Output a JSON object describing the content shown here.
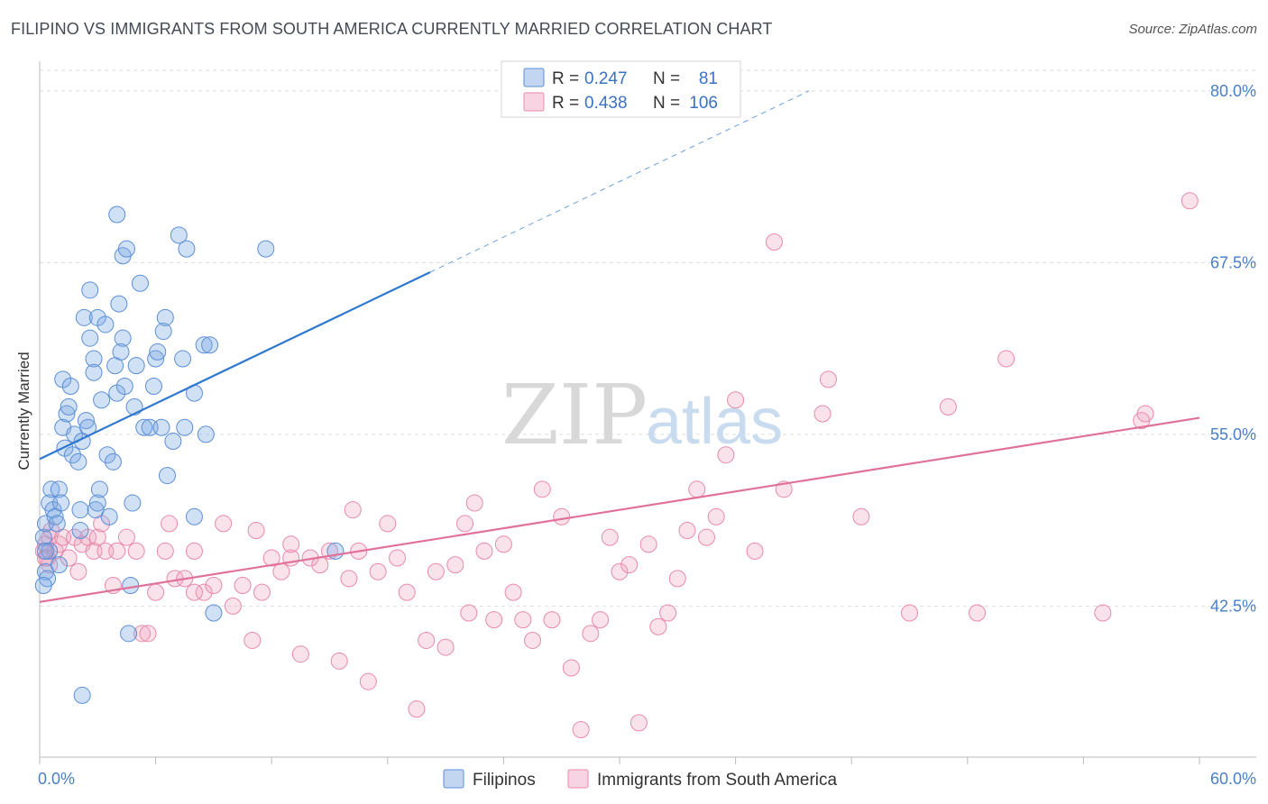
{
  "title": "FILIPINO VS IMMIGRANTS FROM SOUTH AMERICA CURRENTLY MARRIED CORRELATION CHART",
  "source": "Source: ZipAtlas.com",
  "watermark": {
    "zip": "ZIP",
    "atlas": "atlas"
  },
  "colors": {
    "blue": "#5b8fd6",
    "blue_fill": "rgba(120,165,225,0.35)",
    "blue_line": "#2f78d0",
    "pink": "#e88aa8",
    "pink_fill": "rgba(240,160,190,0.30)",
    "pink_line": "#e0719a",
    "axis_label": "#4a7fc8",
    "grid": "#dddddd"
  },
  "legend": {
    "rows": [
      {
        "r_label": "R =",
        "r_value": "0.247",
        "n_label": "N =",
        "n_value": "81"
      },
      {
        "r_label": "R =",
        "r_value": "0.438",
        "n_label": "N =",
        "n_value": "106"
      }
    ]
  },
  "bottom_legend": [
    "Filipinos",
    "Immigrants from South America"
  ],
  "chart_data": {
    "type": "scatter",
    "title": "FILIPINO VS IMMIGRANTS FROM SOUTH AMERICA CURRENTLY MARRIED CORRELATION CHART",
    "xlabel": "",
    "ylabel": "Currently Married",
    "xlim": [
      0,
      60
    ],
    "ylim": [
      31.5,
      81.5
    ],
    "x_tick_labels": [
      "0.0%",
      "60.0%"
    ],
    "y_ticks": [
      42.5,
      55.0,
      67.5,
      80.0
    ],
    "y_tick_labels": [
      "42.5%",
      "55.0%",
      "67.5%",
      "80.0%"
    ],
    "grid": true,
    "legend_position": "top-center",
    "series": [
      {
        "name": "Filipinos",
        "color": "blue",
        "trend": {
          "x": [
            0,
            20.2
          ],
          "y": [
            53.2,
            66.8
          ],
          "dashed_to": [
            39.8,
            80.0
          ]
        },
        "points": [
          [
            0.2,
            47.5
          ],
          [
            0.3,
            48.5
          ],
          [
            0.3,
            45.0
          ],
          [
            0.4,
            44.5
          ],
          [
            0.5,
            46.5
          ],
          [
            0.5,
            50.0
          ],
          [
            0.6,
            51.0
          ],
          [
            0.7,
            49.5
          ],
          [
            0.8,
            49.0
          ],
          [
            0.9,
            48.5
          ],
          [
            1.0,
            51.0
          ],
          [
            1.1,
            50.0
          ],
          [
            1.0,
            45.5
          ],
          [
            1.2,
            55.5
          ],
          [
            1.3,
            54.0
          ],
          [
            1.2,
            59.0
          ],
          [
            1.4,
            56.5
          ],
          [
            1.5,
            57.0
          ],
          [
            1.6,
            58.5
          ],
          [
            1.7,
            53.5
          ],
          [
            1.8,
            55.0
          ],
          [
            2.0,
            53.0
          ],
          [
            2.1,
            48.0
          ],
          [
            2.1,
            49.5
          ],
          [
            2.2,
            54.5
          ],
          [
            2.3,
            63.5
          ],
          [
            2.4,
            56.0
          ],
          [
            2.5,
            55.5
          ],
          [
            2.6,
            62.0
          ],
          [
            2.6,
            65.5
          ],
          [
            2.8,
            60.5
          ],
          [
            3.0,
            63.5
          ],
          [
            2.9,
            49.5
          ],
          [
            2.8,
            59.5
          ],
          [
            3.0,
            50.0
          ],
          [
            3.1,
            51.0
          ],
          [
            3.2,
            57.5
          ],
          [
            3.4,
            63.0
          ],
          [
            3.5,
            53.5
          ],
          [
            3.6,
            49.0
          ],
          [
            3.8,
            53.0
          ],
          [
            3.9,
            60.0
          ],
          [
            4.0,
            58.0
          ],
          [
            4.1,
            64.5
          ],
          [
            4.2,
            61.0
          ],
          [
            4.3,
            62.0
          ],
          [
            4.4,
            58.5
          ],
          [
            4.0,
            71.0
          ],
          [
            4.3,
            68.0
          ],
          [
            4.5,
            68.5
          ],
          [
            4.6,
            40.5
          ],
          [
            4.7,
            44.0
          ],
          [
            4.8,
            50.0
          ],
          [
            4.9,
            57.0
          ],
          [
            5.0,
            60.0
          ],
          [
            5.2,
            66.0
          ],
          [
            5.4,
            55.5
          ],
          [
            5.7,
            55.5
          ],
          [
            5.9,
            58.5
          ],
          [
            6.0,
            60.5
          ],
          [
            6.1,
            61.0
          ],
          [
            6.3,
            55.5
          ],
          [
            6.4,
            62.5
          ],
          [
            6.5,
            63.5
          ],
          [
            6.6,
            52.0
          ],
          [
            6.9,
            54.5
          ],
          [
            7.2,
            69.5
          ],
          [
            7.4,
            60.5
          ],
          [
            7.6,
            68.5
          ],
          [
            8.0,
            49.0
          ],
          [
            8.0,
            58.0
          ],
          [
            8.5,
            61.5
          ],
          [
            8.8,
            61.5
          ],
          [
            7.5,
            55.5
          ],
          [
            8.6,
            55.0
          ],
          [
            9.0,
            42.0
          ],
          [
            11.7,
            68.5
          ],
          [
            15.3,
            46.5
          ],
          [
            2.2,
            36.0
          ],
          [
            0.2,
            44.0
          ],
          [
            0.3,
            46.5
          ]
        ]
      },
      {
        "name": "Immigrants from South America",
        "color": "pink",
        "trend": {
          "x": [
            0,
            60
          ],
          "y": [
            42.8,
            56.2
          ]
        },
        "points": [
          [
            0.2,
            46.5
          ],
          [
            0.3,
            47.0
          ],
          [
            0.4,
            46.0
          ],
          [
            0.5,
            47.5
          ],
          [
            0.6,
            48.0
          ],
          [
            0.8,
            46.5
          ],
          [
            1.0,
            47.0
          ],
          [
            1.2,
            47.5
          ],
          [
            1.5,
            46.0
          ],
          [
            1.8,
            47.5
          ],
          [
            2.0,
            45.0
          ],
          [
            2.2,
            47.0
          ],
          [
            2.5,
            47.5
          ],
          [
            2.8,
            46.5
          ],
          [
            3.0,
            47.5
          ],
          [
            3.4,
            46.5
          ],
          [
            3.8,
            44.0
          ],
          [
            4.0,
            46.5
          ],
          [
            4.5,
            47.5
          ],
          [
            5.0,
            46.5
          ],
          [
            5.3,
            40.5
          ],
          [
            5.6,
            40.5
          ],
          [
            6.0,
            43.5
          ],
          [
            6.5,
            46.5
          ],
          [
            6.7,
            48.5
          ],
          [
            7.0,
            44.5
          ],
          [
            7.5,
            44.5
          ],
          [
            8.0,
            46.5
          ],
          [
            8.5,
            43.5
          ],
          [
            9.0,
            44.0
          ],
          [
            9.5,
            48.5
          ],
          [
            10.0,
            42.5
          ],
          [
            10.5,
            44.0
          ],
          [
            11.0,
            40.0
          ],
          [
            11.5,
            43.5
          ],
          [
            12.0,
            46.0
          ],
          [
            12.5,
            45.0
          ],
          [
            13.0,
            46.0
          ],
          [
            13.5,
            39.0
          ],
          [
            14.0,
            46.0
          ],
          [
            14.5,
            45.5
          ],
          [
            15.0,
            46.5
          ],
          [
            15.5,
            38.5
          ],
          [
            16.0,
            44.5
          ],
          [
            16.5,
            46.5
          ],
          [
            17.0,
            37.0
          ],
          [
            17.5,
            45.0
          ],
          [
            18.0,
            48.5
          ],
          [
            18.5,
            46.0
          ],
          [
            19.0,
            43.5
          ],
          [
            19.5,
            35.0
          ],
          [
            20.0,
            40.0
          ],
          [
            20.5,
            45.0
          ],
          [
            21.0,
            39.5
          ],
          [
            21.5,
            45.5
          ],
          [
            22.0,
            48.5
          ],
          [
            22.5,
            50.0
          ],
          [
            23.0,
            46.5
          ],
          [
            23.5,
            41.5
          ],
          [
            24.0,
            47.0
          ],
          [
            24.5,
            43.5
          ],
          [
            25.0,
            41.5
          ],
          [
            25.5,
            40.0
          ],
          [
            26.0,
            51.0
          ],
          [
            26.5,
            41.5
          ],
          [
            27.0,
            49.0
          ],
          [
            27.5,
            38.0
          ],
          [
            28.0,
            33.5
          ],
          [
            28.5,
            40.5
          ],
          [
            29.0,
            41.5
          ],
          [
            29.5,
            47.5
          ],
          [
            30.0,
            45.0
          ],
          [
            30.5,
            45.5
          ],
          [
            31.0,
            34.0
          ],
          [
            31.5,
            47.0
          ],
          [
            32.0,
            41.0
          ],
          [
            32.5,
            42.0
          ],
          [
            33.0,
            44.5
          ],
          [
            33.5,
            48.0
          ],
          [
            34.0,
            51.0
          ],
          [
            34.5,
            47.5
          ],
          [
            35.0,
            49.0
          ],
          [
            35.5,
            53.5
          ],
          [
            36.0,
            57.5
          ],
          [
            37.0,
            46.5
          ],
          [
            38.0,
            69.0
          ],
          [
            38.5,
            51.0
          ],
          [
            40.5,
            56.5
          ],
          [
            40.8,
            59.0
          ],
          [
            42.5,
            49.0
          ],
          [
            45.0,
            42.0
          ],
          [
            47.0,
            57.0
          ],
          [
            48.5,
            42.0
          ],
          [
            50.0,
            60.5
          ],
          [
            55.0,
            42.0
          ],
          [
            57.0,
            56.0
          ],
          [
            57.2,
            56.5
          ],
          [
            59.5,
            72.0
          ],
          [
            22.2,
            42.0
          ],
          [
            16.2,
            49.5
          ],
          [
            13.0,
            47.0
          ],
          [
            11.2,
            48.0
          ],
          [
            8.0,
            43.5
          ],
          [
            3.2,
            48.5
          ],
          [
            0.5,
            45.5
          ],
          [
            0.3,
            46.0
          ]
        ]
      }
    ]
  }
}
